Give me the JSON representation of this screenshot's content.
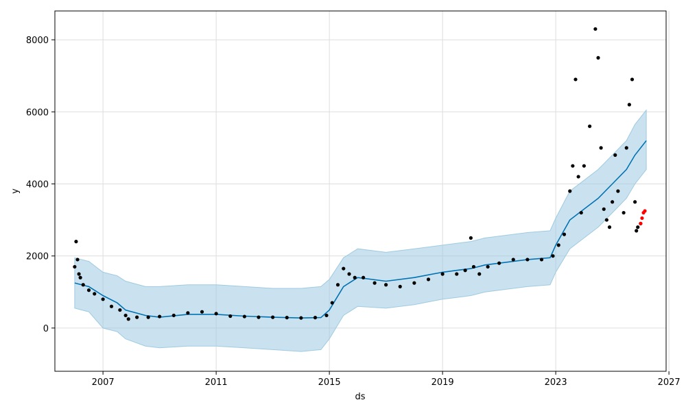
{
  "chart_data": {
    "type": "line",
    "xlabel": "ds",
    "ylabel": "y",
    "xlim": [
      2005.3,
      2026.9
    ],
    "ylim": [
      -1200,
      8800
    ],
    "x_ticks": [
      2007,
      2011,
      2015,
      2019,
      2023,
      2027
    ],
    "x_tick_labels": [
      "2007",
      "2011",
      "2015",
      "2019",
      "2023",
      "2027"
    ],
    "y_ticks": [
      0,
      2000,
      4000,
      6000,
      8000
    ],
    "y_tick_labels": [
      "0",
      "2000",
      "4000",
      "6000",
      "8000"
    ],
    "grid": true,
    "colors": {
      "forecast": "#0072B2",
      "band": "#9ecae1",
      "actual": "#000000",
      "test": "#ff0000"
    },
    "series": [
      {
        "kind": "forecast-line",
        "x": [
          2006.0,
          2006.5,
          2007.0,
          2007.5,
          2007.8,
          2008.5,
          2009.0,
          2010.0,
          2011.0,
          2012.0,
          2013.0,
          2014.0,
          2014.7,
          2015.0,
          2015.5,
          2016.0,
          2017.0,
          2018.0,
          2019.0,
          2019.5,
          2020.0,
          2020.5,
          2021.0,
          2022.0,
          2022.8,
          2023.0,
          2023.5,
          2024.0,
          2024.5,
          2025.0,
          2025.5,
          2025.8,
          2026.2
        ],
        "y": [
          1250,
          1150,
          900,
          700,
          500,
          350,
          300,
          380,
          380,
          330,
          300,
          280,
          290,
          500,
          1150,
          1400,
          1300,
          1400,
          1550,
          1600,
          1650,
          1750,
          1800,
          1900,
          1950,
          2300,
          3000,
          3300,
          3600,
          4000,
          4400,
          4800,
          5200
        ]
      },
      {
        "kind": "uncertainty-band",
        "x": [
          2006.0,
          2006.5,
          2007.0,
          2007.5,
          2007.8,
          2008.5,
          2009.0,
          2010.0,
          2011.0,
          2012.0,
          2013.0,
          2014.0,
          2014.7,
          2015.0,
          2015.5,
          2016.0,
          2017.0,
          2018.0,
          2019.0,
          2019.5,
          2020.0,
          2020.5,
          2021.0,
          2022.0,
          2022.8,
          2023.0,
          2023.5,
          2024.0,
          2024.5,
          2025.0,
          2025.5,
          2025.8,
          2026.2
        ],
        "lower": [
          550,
          450,
          0,
          -100,
          -300,
          -500,
          -550,
          -500,
          -500,
          -550,
          -600,
          -650,
          -600,
          -300,
          350,
          600,
          550,
          650,
          800,
          850,
          900,
          1000,
          1050,
          1150,
          1200,
          1550,
          2200,
          2500,
          2800,
          3200,
          3600,
          4000,
          4400
        ],
        "upper": [
          1950,
          1850,
          1550,
          1450,
          1300,
          1150,
          1150,
          1200,
          1200,
          1150,
          1100,
          1100,
          1150,
          1350,
          1950,
          2200,
          2100,
          2200,
          2300,
          2350,
          2400,
          2500,
          2550,
          2650,
          2700,
          3050,
          3800,
          4100,
          4400,
          4800,
          5200,
          5650,
          6050
        ]
      },
      {
        "kind": "actual-points",
        "x": [
          2006.0,
          2006.05,
          2006.1,
          2006.15,
          2006.2,
          2006.3,
          2006.5,
          2006.7,
          2007.0,
          2007.3,
          2007.6,
          2007.8,
          2007.9,
          2008.2,
          2008.6,
          2009.0,
          2009.5,
          2010.0,
          2010.5,
          2011.0,
          2011.5,
          2012.0,
          2012.5,
          2013.0,
          2013.5,
          2014.0,
          2014.5,
          2014.9,
          2015.1,
          2015.3,
          2015.5,
          2015.7,
          2015.9,
          2016.2,
          2016.6,
          2017.0,
          2017.5,
          2018.0,
          2018.5,
          2019.0,
          2019.5,
          2019.8,
          2020.0,
          2020.1,
          2020.3,
          2020.6,
          2021.0,
          2021.5,
          2022.0,
          2022.5,
          2022.9,
          2023.1,
          2023.3,
          2023.5,
          2023.6,
          2023.7,
          2023.8,
          2023.9,
          2024.0,
          2024.2,
          2024.4,
          2024.5,
          2024.6,
          2024.7,
          2024.8,
          2024.9,
          2025.0,
          2025.1,
          2025.2,
          2025.4,
          2025.5,
          2025.6,
          2025.7,
          2025.8,
          2025.85,
          2025.9,
          2026.0
        ],
        "y": [
          1700,
          2400,
          1900,
          1500,
          1400,
          1200,
          1050,
          950,
          800,
          600,
          500,
          350,
          250,
          300,
          300,
          320,
          350,
          420,
          450,
          400,
          330,
          320,
          300,
          300,
          290,
          280,
          290,
          350,
          700,
          1200,
          1650,
          1500,
          1400,
          1400,
          1250,
          1200,
          1150,
          1250,
          1350,
          1500,
          1500,
          1600,
          2500,
          1700,
          1500,
          1700,
          1800,
          1900,
          1900,
          1900,
          2000,
          2300,
          2600,
          3800,
          4500,
          6900,
          4200,
          3200,
          4500,
          5600,
          8300,
          7500,
          5000,
          3300,
          3000,
          2800,
          3500,
          4800,
          3800,
          3200,
          5000,
          6200,
          6900,
          3500,
          2700,
          2800,
          2900
        ]
      },
      {
        "kind": "test-points",
        "x": [
          2026.0,
          2026.05,
          2026.1,
          2026.15
        ],
        "y": [
          2900,
          3050,
          3200,
          3250
        ]
      }
    ]
  }
}
